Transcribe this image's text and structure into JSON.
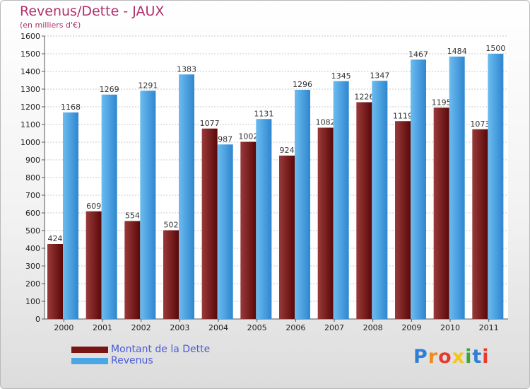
{
  "header": {
    "title": "Revenus/Dette - JAUX",
    "subtitle": "(en milliers d'€)"
  },
  "chart_data": {
    "type": "bar",
    "categories": [
      "2000",
      "2001",
      "2002",
      "2003",
      "2004",
      "2005",
      "2006",
      "2007",
      "2008",
      "2009",
      "2010",
      "2011"
    ],
    "series": [
      {
        "name": "Montant de la Dette",
        "values": [
          424,
          609,
          554,
          502,
          1077,
          1002,
          924,
          1082,
          1226,
          1119,
          1195,
          1073
        ],
        "color": "#7a1515"
      },
      {
        "name": "Revenus",
        "values": [
          1168,
          1269,
          1291,
          1383,
          987,
          1131,
          1296,
          1345,
          1347,
          1467,
          1484,
          1500
        ],
        "color": "#4ba6e6"
      }
    ],
    "ylim": [
      0,
      1600
    ],
    "yticks": [
      0,
      100,
      200,
      300,
      400,
      500,
      600,
      700,
      800,
      900,
      1000,
      1100,
      1200,
      1300,
      1400,
      1500,
      1600
    ],
    "grid": true,
    "legend": "bottom-left"
  },
  "branding": {
    "logo_letters": [
      "P",
      "r",
      "o",
      "x",
      "i",
      "t",
      "i"
    ],
    "logo_colors": [
      "#2f7fd6",
      "#f08a1c",
      "#e63b2e",
      "#f5c518",
      "#3aa63a",
      "#2f7fd6",
      "#e63b2e"
    ]
  }
}
